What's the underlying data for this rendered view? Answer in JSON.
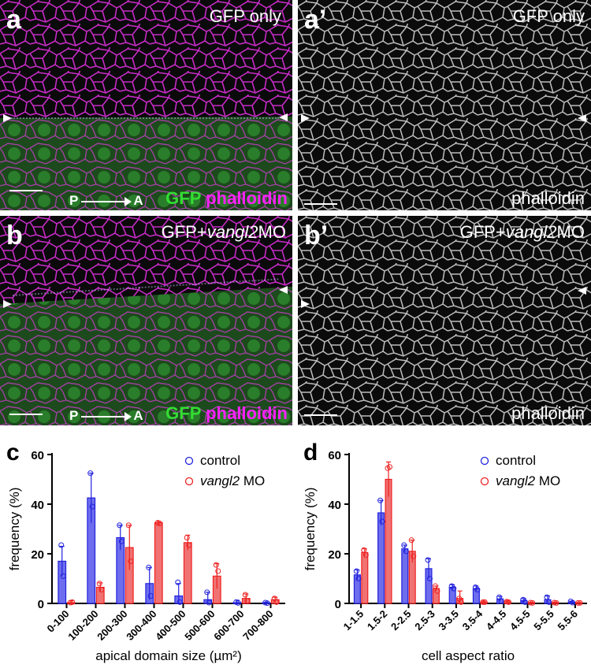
{
  "panels": {
    "a": {
      "letter": "a",
      "title": "GFP only",
      "label_green": "GFP",
      "label_magenta": "phalloidin",
      "axis_p": "P",
      "axis_a": "A"
    },
    "a2": {
      "letter": "a’",
      "title": "GFP only",
      "label": "phalloidin"
    },
    "b": {
      "letter": "b",
      "title_prefix": "GFP+",
      "title_italic": "vangl2",
      "title_suffix": "MO",
      "label_green": "GFP",
      "label_magenta": "phalloidin",
      "axis_p": "P",
      "axis_a": "A"
    },
    "b2": {
      "letter": "b’",
      "title_prefix": "GFP+",
      "title_italic": "vangl2",
      "title_suffix": "MO",
      "label": "phalloidin"
    }
  },
  "colors": {
    "control": "#2222dd",
    "vangl2": "#ee2222",
    "magenta": "#ff22ff",
    "green": "#33dd33"
  },
  "chart_data": [
    {
      "panel": "c",
      "type": "bar",
      "xlabel": "apical domain size (µm²)",
      "ylabel": "frequency (%)",
      "ylim": [
        0,
        60
      ],
      "yticks": [
        0,
        20,
        40,
        60
      ],
      "categories": [
        "0-100",
        "100-200",
        "200-300",
        "300-400",
        "400-500",
        "500-600",
        "600-700",
        "700-800"
      ],
      "legend": {
        "placement": "top-right",
        "control": "control",
        "vangl2_italic": "vangl2",
        "vangl2_suffix": " MO"
      },
      "series": [
        {
          "name": "control",
          "values": [
            17,
            42.5,
            26.5,
            8,
            3,
            1.5,
            0.3,
            0.2
          ],
          "error": [
            6,
            10,
            5,
            6.5,
            5,
            3,
            1,
            0.3
          ],
          "points": [
            [
              23.5,
              11
            ],
            [
              52.5,
              39
            ],
            [
              31.5,
              25
            ],
            [
              14.5,
              3
            ],
            [
              8.5,
              0.5
            ],
            [
              4.5,
              0.3
            ],
            [
              0.5,
              0.2
            ],
            [
              0.3,
              0.1
            ]
          ]
        },
        {
          "name": "vangl2 MO",
          "values": [
            0.3,
            6.5,
            22.5,
            32.5,
            24.5,
            11,
            2,
            1.5
          ],
          "error": [
            0.8,
            1.8,
            9,
            0.6,
            3,
            5,
            1.8,
            1
          ],
          "points": [
            [
              0.3,
              0.5
            ],
            [
              8,
              5.5
            ],
            [
              31.5,
              17
            ],
            [
              32.5,
              32.2
            ],
            [
              26.5,
              23.5
            ],
            [
              15.5,
              13
            ],
            [
              3.5,
              1
            ],
            [
              2,
              0.5
            ]
          ]
        }
      ]
    },
    {
      "panel": "d",
      "type": "bar",
      "xlabel": "cell aspect ratio",
      "ylabel": "frequency (%)",
      "ylim": [
        0,
        60
      ],
      "yticks": [
        0,
        20,
        40,
        60
      ],
      "categories": [
        "1-1.5",
        "1.5-2",
        "2-2.5",
        "2.5-3",
        "3-3.5",
        "3.5-4",
        "4-4.5",
        "4.5-5",
        "5-5.5",
        "5.5-6"
      ],
      "legend": {
        "placement": "top-right",
        "control": "control",
        "vangl2_italic": "vangl2",
        "vangl2_suffix": " MO"
      },
      "series": [
        {
          "name": "control",
          "values": [
            11.5,
            36.5,
            22,
            14,
            6.5,
            6,
            1.8,
            1.2,
            1.5,
            0.5
          ],
          "error": [
            2,
            5,
            1.5,
            4,
            1,
            1,
            1,
            0.8,
            1.5,
            0.4
          ],
          "points": [
            [
              13,
              10
            ],
            [
              41.5,
              33
            ],
            [
              23.5,
              21
            ],
            [
              17.5,
              10
            ],
            [
              7,
              6
            ],
            [
              6.5,
              5.5
            ],
            [
              2.5,
              1
            ],
            [
              1.5,
              0.5
            ],
            [
              2.5,
              0.5
            ],
            [
              0.8,
              0.3
            ]
          ]
        },
        {
          "name": "vangl2 MO",
          "values": [
            20.5,
            50,
            21,
            6,
            2,
            0.5,
            0.7,
            0.3,
            0.3,
            0.2
          ],
          "error": [
            1.5,
            7,
            4.5,
            1,
            3,
            0.4,
            0.5,
            0.2,
            0.2,
            0.2
          ],
          "points": [
            [
              21.5,
              19.5
            ],
            [
              54.5,
              55
            ],
            [
              25.5,
              19
            ],
            [
              7,
              5
            ],
            [
              2,
              0.5
            ],
            [
              0.5,
              0.5
            ],
            [
              0.7,
              0.5
            ],
            [
              0.3,
              0.2
            ],
            [
              0.3,
              0.2
            ],
            [
              0.2,
              0.2
            ]
          ]
        }
      ]
    }
  ]
}
